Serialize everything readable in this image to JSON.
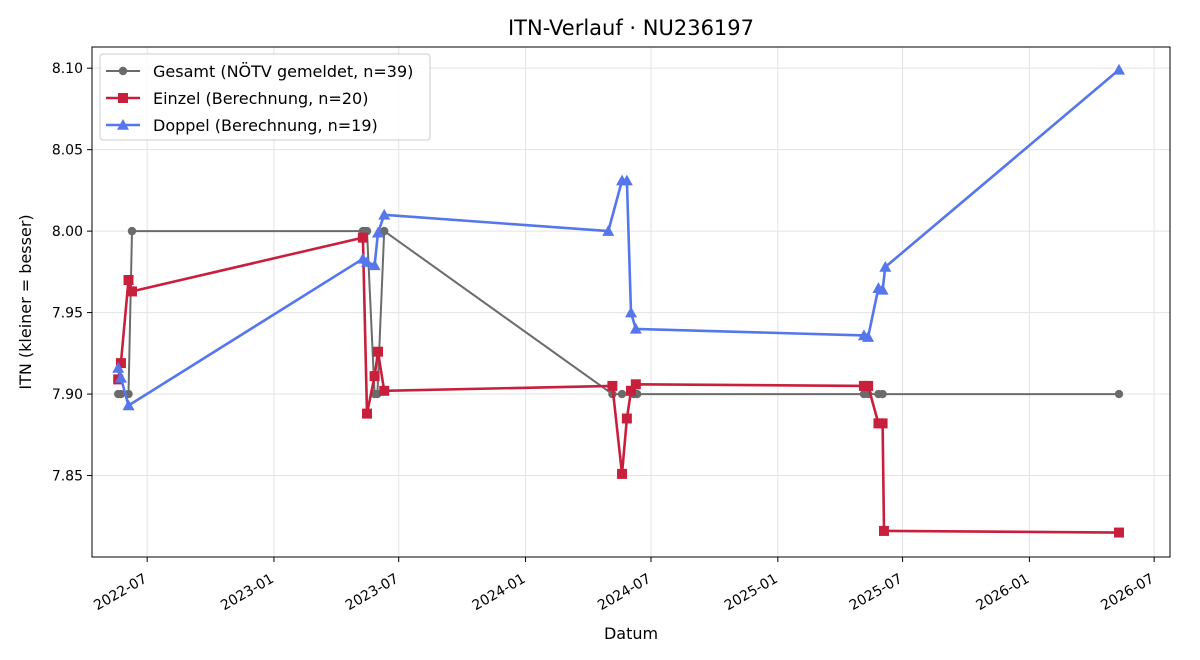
{
  "chart_data": {
    "type": "line",
    "title": "ITN-Verlauf · NU236197",
    "xlabel": "Datum",
    "ylabel": "ITN  (kleiner = besser)",
    "x_axis_type": "date",
    "xlim": [
      "2022-04-12",
      "2026-07-24"
    ],
    "ylim": [
      7.8,
      8.113
    ],
    "x_ticks": [
      "2022-07-01",
      "2023-01-01",
      "2023-07-01",
      "2024-01-01",
      "2024-07-01",
      "2025-01-01",
      "2025-07-01",
      "2026-01-01",
      "2026-07-01"
    ],
    "x_tick_labels": [
      "2022-07",
      "2023-01",
      "2023-07",
      "2024-01",
      "2024-07",
      "2025-01",
      "2025-07",
      "2026-01",
      "2026-07"
    ],
    "y_ticks": [
      7.85,
      7.9,
      7.95,
      8.0,
      8.05,
      8.1
    ],
    "y_tick_labels": [
      "7.85",
      "7.90",
      "7.95",
      "8.00",
      "8.05",
      "8.10"
    ],
    "grid": true,
    "legend_position": "top-left",
    "series": [
      {
        "name": "Gesamt (NÖTV gemeldet, n=39)",
        "color": "#6b6b6b",
        "marker": "circle",
        "points": [
          [
            "2022-05-20",
            7.9
          ],
          [
            "2022-05-24",
            7.9
          ],
          [
            "2022-06-04",
            7.9
          ],
          [
            "2022-06-09",
            8.0
          ],
          [
            "2023-05-10",
            8.0
          ],
          [
            "2023-05-13",
            8.0
          ],
          [
            "2023-05-16",
            8.0
          ],
          [
            "2023-05-27",
            7.9
          ],
          [
            "2023-05-31",
            7.9
          ],
          [
            "2023-06-10",
            8.0
          ],
          [
            "2024-05-06",
            7.9
          ],
          [
            "2024-05-20",
            7.9
          ],
          [
            "2024-06-06",
            7.9
          ],
          [
            "2024-06-11",
            7.9
          ],
          [
            "2025-05-06",
            7.9
          ],
          [
            "2025-05-12",
            7.9
          ],
          [
            "2025-05-27",
            7.9
          ],
          [
            "2025-06-02",
            7.9
          ],
          [
            "2026-05-11",
            7.9
          ]
        ]
      },
      {
        "name": "Einzel (Berechnung, n=20)",
        "color": "#c8203c",
        "marker": "square",
        "points": [
          [
            "2022-05-20",
            7.909
          ],
          [
            "2022-05-24",
            7.919
          ],
          [
            "2022-06-04",
            7.97
          ],
          [
            "2022-06-09",
            7.963
          ],
          [
            "2023-05-10",
            7.996
          ],
          [
            "2023-05-16",
            7.888
          ],
          [
            "2023-05-27",
            7.911
          ],
          [
            "2023-06-01",
            7.926
          ],
          [
            "2023-06-10",
            7.902
          ],
          [
            "2024-05-06",
            7.905
          ],
          [
            "2024-05-20",
            7.851
          ],
          [
            "2024-05-27",
            7.885
          ],
          [
            "2024-06-02",
            7.902
          ],
          [
            "2024-06-09",
            7.906
          ],
          [
            "2025-05-06",
            7.905
          ],
          [
            "2025-05-12",
            7.905
          ],
          [
            "2025-05-27",
            7.882
          ],
          [
            "2025-06-02",
            7.882
          ],
          [
            "2025-06-04",
            7.816
          ],
          [
            "2026-05-11",
            7.815
          ]
        ]
      },
      {
        "name": "Doppel (Berechnung, n=19)",
        "color": "#5576ec",
        "marker": "triangle",
        "points": [
          [
            "2022-05-20",
            7.916
          ],
          [
            "2022-05-24",
            7.91
          ],
          [
            "2022-06-04",
            7.893
          ],
          [
            "2023-05-10",
            7.983
          ],
          [
            "2023-05-16",
            7.981
          ],
          [
            "2023-05-27",
            7.979
          ],
          [
            "2023-06-01",
            7.999
          ],
          [
            "2023-06-10",
            8.01
          ],
          [
            "2024-04-30",
            8.0
          ],
          [
            "2024-05-20",
            8.031
          ],
          [
            "2024-05-27",
            8.031
          ],
          [
            "2024-06-02",
            7.95
          ],
          [
            "2024-06-09",
            7.94
          ],
          [
            "2025-05-06",
            7.936
          ],
          [
            "2025-05-12",
            7.935
          ],
          [
            "2025-05-27",
            7.965
          ],
          [
            "2025-06-02",
            7.964
          ],
          [
            "2025-06-06",
            7.978
          ],
          [
            "2026-05-11",
            8.099
          ]
        ]
      }
    ]
  }
}
